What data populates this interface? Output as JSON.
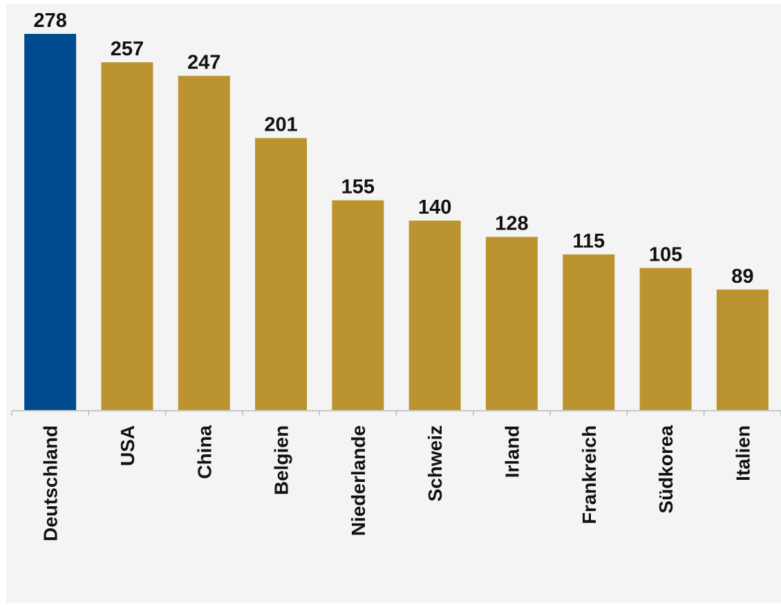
{
  "chart_data": {
    "type": "bar",
    "title": "",
    "xlabel": "",
    "ylabel": "",
    "ylim": [
      0,
      278
    ],
    "grid": false,
    "categories": [
      "Deutschland",
      "USA",
      "China",
      "Belgien",
      "Niederlande",
      "Schweiz",
      "Irland",
      "Frankreich",
      "Südkorea",
      "Italien"
    ],
    "values": [
      278,
      257,
      247,
      201,
      155,
      140,
      128,
      115,
      105,
      89
    ],
    "highlight_category": "Deutschland",
    "colors": {
      "highlight": "#004A8F",
      "default": "#BC942F",
      "axis": "#b8b8b8",
      "background": "#f4f4f4"
    }
  }
}
